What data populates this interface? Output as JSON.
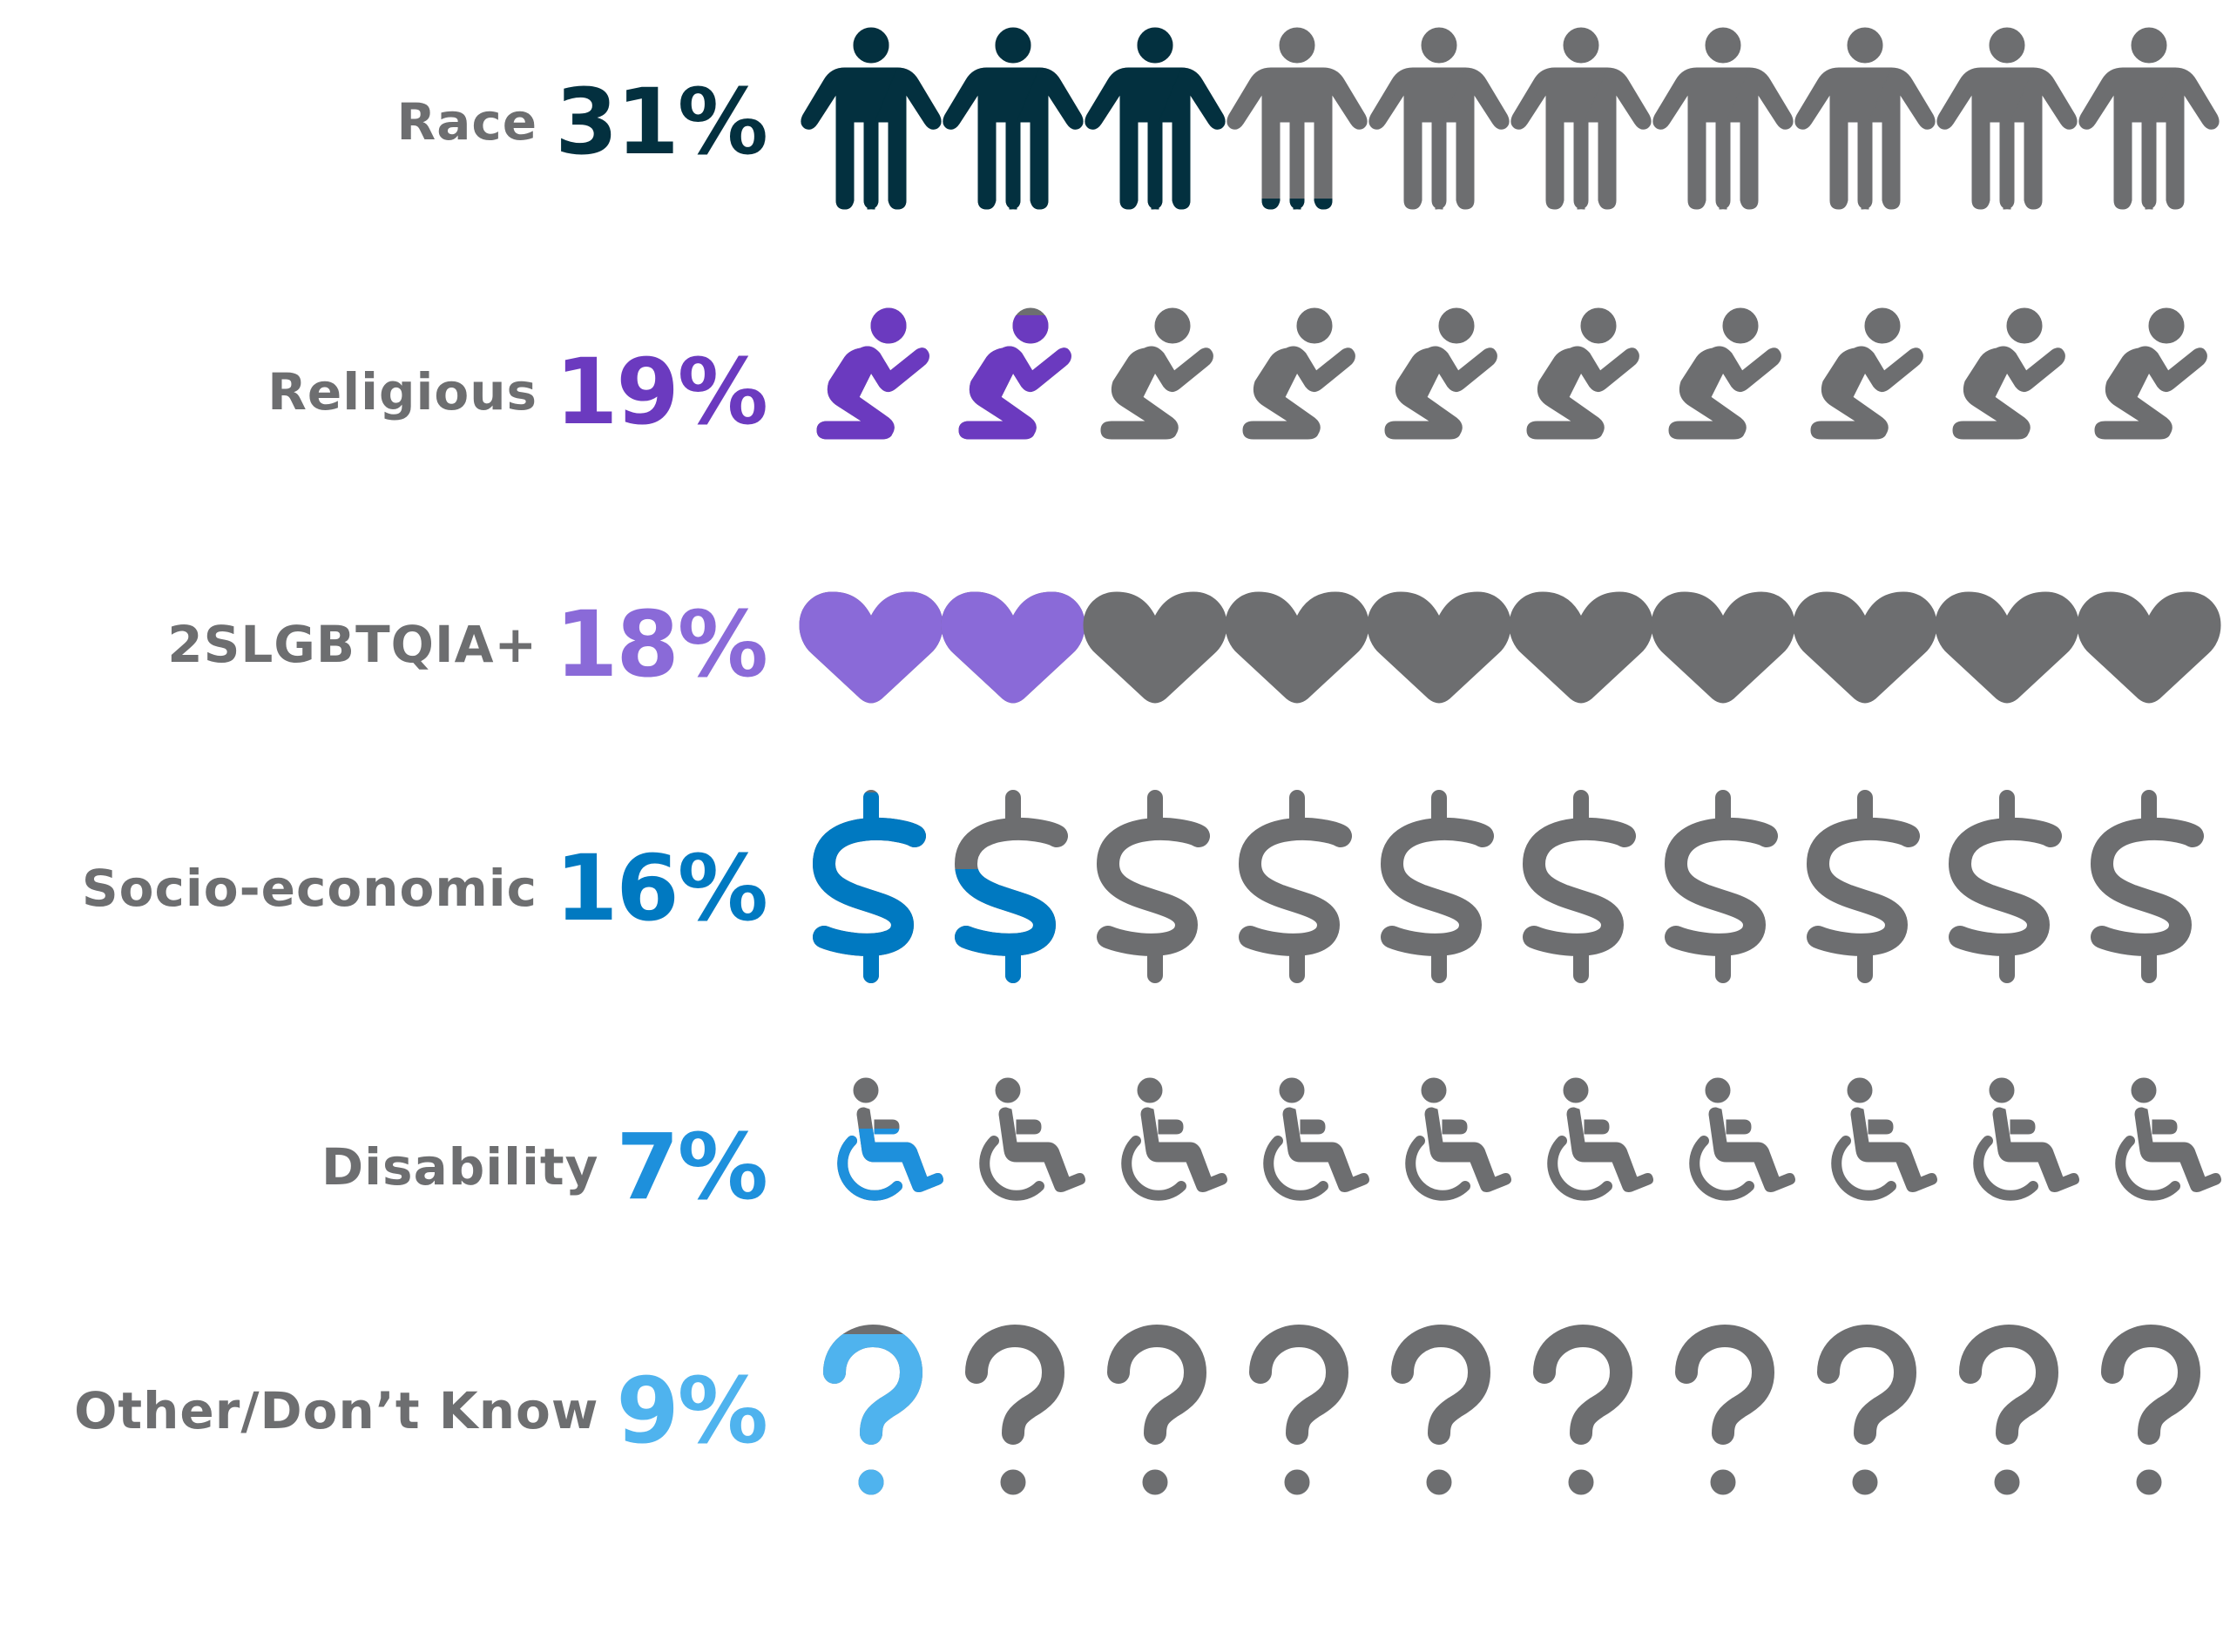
{
  "chart_data": {
    "type": "pictograph",
    "icons_per_row": 10,
    "inactive_color": "#6d6e70",
    "rows": [
      {
        "category": "Race",
        "label": "31%",
        "value": 31,
        "icon": "person-icon",
        "color": "#03303f"
      },
      {
        "category": "Religious",
        "label": "19%",
        "value": 19,
        "icon": "praying-person-icon",
        "color": "#6b3abf"
      },
      {
        "category": "2SLGBTQIA+",
        "label": "18%",
        "value": 18,
        "icon": "heart-icon",
        "color": "#8a6ad8"
      },
      {
        "category": "Socio-economic",
        "label": "16%",
        "value": 16,
        "icon": "dollar-sign-icon",
        "color": "#0079c1"
      },
      {
        "category": "Disability",
        "label": "7%",
        "value": 7,
        "icon": "wheelchair-icon",
        "color": "#1e90dc"
      },
      {
        "category": "Other/Don’t Know",
        "label": "9%",
        "value": 9,
        "icon": "question-mark-icon",
        "color": "#4fb3ee"
      }
    ]
  }
}
